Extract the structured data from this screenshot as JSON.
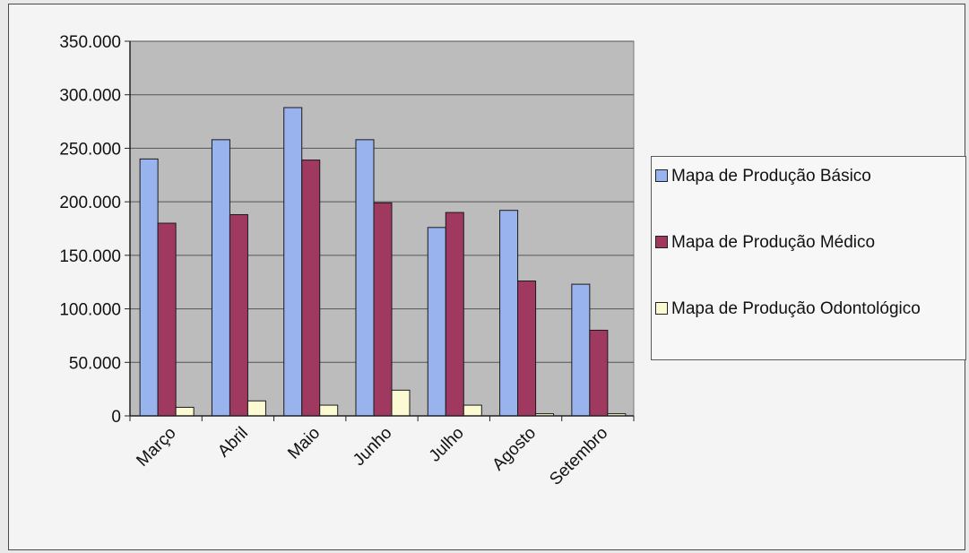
{
  "chart_data": {
    "type": "bar",
    "title": "",
    "xlabel": "",
    "ylabel": "",
    "categories": [
      "Março",
      "Abril",
      "Maio",
      "Junho",
      "Julho",
      "Agosto",
      "Setembro"
    ],
    "ylim": [
      0,
      350000
    ],
    "yticks": [
      {
        "value": 0,
        "label": "0"
      },
      {
        "value": 50000,
        "label": "50.000"
      },
      {
        "value": 100000,
        "label": "100.000"
      },
      {
        "value": 150000,
        "label": "150.000"
      },
      {
        "value": 200000,
        "label": "200.000"
      },
      {
        "value": 250000,
        "label": "250.000"
      },
      {
        "value": 300000,
        "label": "300.000"
      },
      {
        "value": 350000,
        "label": "350.000"
      }
    ],
    "grid": true,
    "legend_position": "right",
    "series": [
      {
        "name": "Mapa de Produção Básico",
        "color": "#99b3ee",
        "values": [
          240000,
          258000,
          288000,
          258000,
          176000,
          192000,
          123000
        ]
      },
      {
        "name": "Mapa de Produção Médico",
        "color": "#a0395f",
        "values": [
          180000,
          188000,
          239000,
          199000,
          190000,
          126000,
          80000
        ]
      },
      {
        "name": "Mapa de Produção Odontológico",
        "color": "#fbfad2",
        "values": [
          8000,
          14000,
          10000,
          24000,
          10000,
          2000,
          2000
        ]
      }
    ]
  }
}
